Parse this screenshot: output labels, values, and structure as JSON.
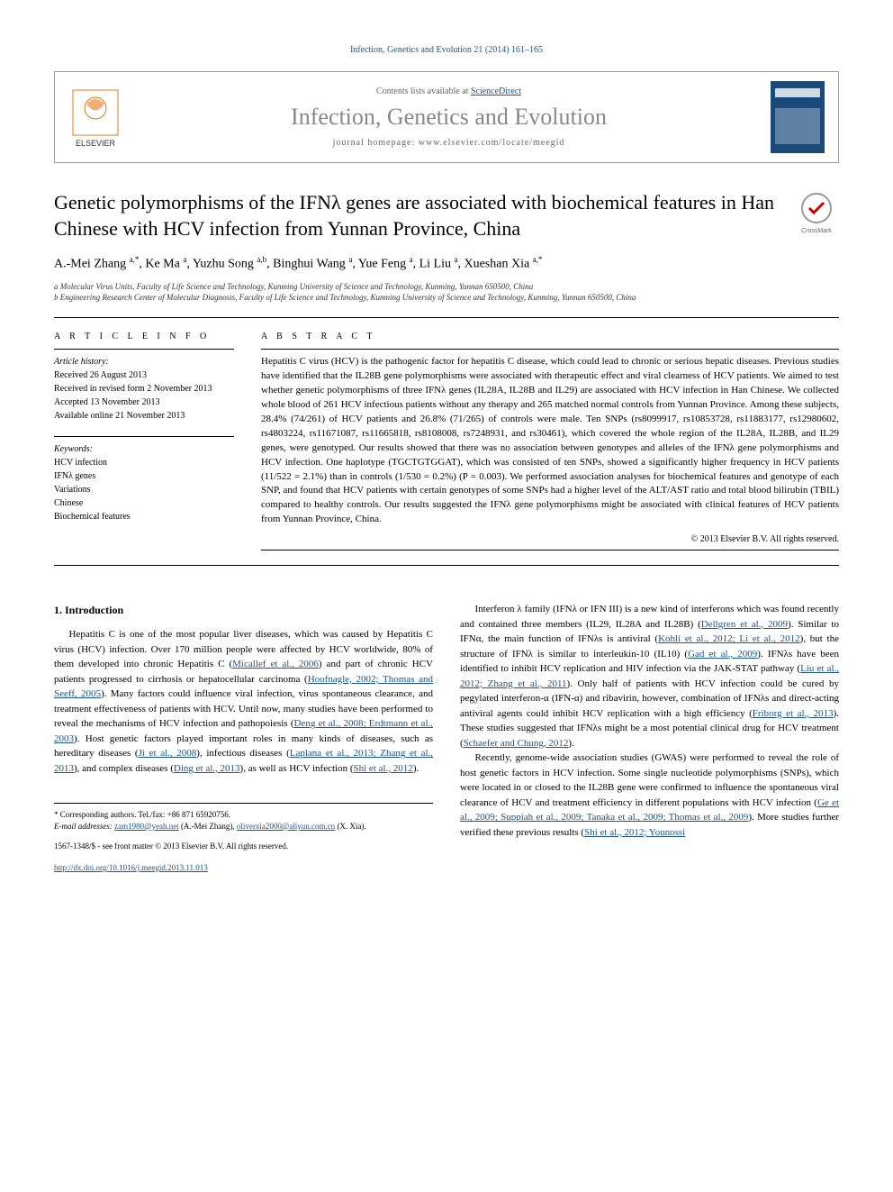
{
  "header": {
    "reference": "Infection, Genetics and Evolution 21 (2014) 161–165",
    "contents_prefix": "Contents lists available at ",
    "contents_link": "ScienceDirect",
    "journal": "Infection, Genetics and Evolution",
    "homepage_prefix": "journal homepage: ",
    "homepage": "www.elsevier.com/locate/meegid"
  },
  "article": {
    "title": "Genetic polymorphisms of the IFNλ genes are associated with biochemical features in Han Chinese with HCV infection from Yunnan Province, China",
    "authors_html": "A.-Mei Zhang <sup>a,*</sup>, Ke Ma <sup>a</sup>, Yuzhu Song <sup>a,b</sup>, Binghui Wang <sup>a</sup>, Yue Feng <sup>a</sup>, Li Liu <sup>a</sup>, Xueshan Xia <sup>a,*</sup>",
    "affiliations": [
      "a Molecular Virus Units, Faculty of Life Science and Technology, Kunming University of Science and Technology, Kunming, Yunnan 650500, China",
      "b Engineering Research Center of Molecular Diagnosis, Faculty of Life Science and Technology, Kunming University of Science and Technology, Kunming, Yunnan 650500, China"
    ]
  },
  "info": {
    "heading_info": "A R T I C L E   I N F O",
    "history_label": "Article history:",
    "history": [
      "Received 26 August 2013",
      "Received in revised form 2 November 2013",
      "Accepted 13 November 2013",
      "Available online 21 November 2013"
    ],
    "keywords_label": "Keywords:",
    "keywords": [
      "HCV infection",
      "IFNλ genes",
      "Variations",
      "Chinese",
      "Biochemical features"
    ]
  },
  "abstract": {
    "heading": "A B S T R A C T",
    "text": "Hepatitis C virus (HCV) is the pathogenic factor for hepatitis C disease, which could lead to chronic or serious hepatic diseases. Previous studies have identified that the IL28B gene polymorphisms were associated with therapeutic effect and viral clearness of HCV patients. We aimed to test whether genetic polymorphisms of three IFNλ genes (IL28A, IL28B and IL29) are associated with HCV infection in Han Chinese. We collected whole blood of 261 HCV infectious patients without any therapy and 265 matched normal controls from Yunnan Province. Among these subjects, 28.4% (74/261) of HCV patients and 26.8% (71/265) of controls were male. Ten SNPs (rs8099917, rs10853728, rs11883177, rs12980602, rs4803224, rs11671087, rs11665818, rs8108008, rs7248931, and rs30461), which covered the whole region of the IL28A, IL28B, and IL29 genes, were genotyped. Our results showed that there was no association between genotypes and alleles of the IFNλ gene polymorphisms and HCV infection. One haplotype (TGCTGTGGAT), which was consisted of ten SNPs, showed a significantly higher frequency in HCV patients (11/522 = 2.1%) than in controls (1/530 = 0.2%) (P = 0.003). We performed association analyses for biochemical features and genotype of each SNP, and found that HCV patients with certain genotypes of some SNPs had a higher level of the ALT/AST ratio and total blood bilirubin (TBIL) compared to healthy controls. Our results suggested the IFNλ gene polymorphisms might be associated with clinical features of HCV patients from Yunnan Province, China.",
    "copyright": "© 2013 Elsevier B.V. All rights reserved."
  },
  "body": {
    "section1_heading": "1. Introduction",
    "col1_p1_parts": [
      "Hepatitis C is one of the most popular liver diseases, which was caused by Hepatitis C virus (HCV) infection. Over 170 million people were affected by HCV worldwide, 80% of them developed into chronic Hepatitis C (",
      "Micallef et al., 2006",
      ") and part of chronic HCV patients progressed to cirrhosis or hepatocellular carcinoma (",
      "Hoofnagle, 2002; Thomas and Seeff, 2005",
      "). Many factors could influence viral infection, virus spontaneous clearance, and treatment effectiveness of patients with HCV. Until now, many studies have been performed to reveal the mechanisms of HCV infection and pathopoiesis (",
      "Deng et al., 2008; Erdtmann et al., 2003",
      "). Host genetic factors played important roles in many kinds of diseases, such as hereditary diseases (",
      "Ji et al., 2008",
      "), infectious diseases (",
      "Laplana et al., 2013; Zhang et al., 2013",
      "), and complex diseases (",
      "Ding et al., 2013",
      "), as well as HCV infection (",
      "Shi et al., 2012",
      ")."
    ],
    "col2_p1_parts": [
      "Interferon λ family (IFNλ or IFN III) is a new kind of interferons which was found recently and contained three members (IL29, IL28A and IL28B) (",
      "Dellgren et al., 2009",
      "). Similar to IFNα, the main function of IFNλs is antiviral (",
      "Kohli et al., 2012; Li et al., 2012",
      "), but the structure of IFNλ is similar to interleukin-10 (IL10) (",
      "Gad et al., 2009",
      "). IFNλs have been identified to inhibit HCV replication and HIV infection via the JAK-STAT pathway (",
      "Liu et al., 2012; Zhang et al., 2011",
      "). Only half of patients with HCV infection could be cured by pegylated interferon-α (IFN-α) and ribavirin, however, combination of IFNλs and direct-acting antiviral agents could inhibit HCV replication with a high efficiency (",
      "Friborg et al., 2013",
      "). These studies suggested that IFNλs might be a most potential clinical drug for HCV treatment (",
      "Schaefer and Chung, 2012",
      ")."
    ],
    "col2_p2_parts": [
      "Recently, genome-wide association studies (GWAS) were performed to reveal the role of host genetic factors in HCV infection. Some single nucleotide polymorphisms (SNPs), which were located in or closed to the IL28B gene were confirmed to influence the spontaneous viral clearance of HCV and treatment efficiency in different populations with HCV infection (",
      "Ge et al., 2009; Suppiah et al., 2009; Tanaka et al., 2009; Thomas et al., 2009",
      "). More studies further verified these previous results (",
      "Shi et al., 2012; Younossi"
    ]
  },
  "footer": {
    "corr": "* Corresponding authors. Tel./fax: +86 871 65920756.",
    "email_label": "E-mail addresses: ",
    "email1": "zam1980@yeah.net",
    "email1_name": " (A.-Mei Zhang), ",
    "email2": "oliverxia2000@aliyun.com.cn",
    "email2_name": " (X. Xia).",
    "issn": "1567-1348/$ - see front matter © 2013 Elsevier B.V. All rights reserved.",
    "doi": "http://dx.doi.org/10.1016/j.meegid.2013.11.013"
  },
  "colors": {
    "link": "#1a5490",
    "journal_gray": "#888888",
    "text": "#000000"
  }
}
